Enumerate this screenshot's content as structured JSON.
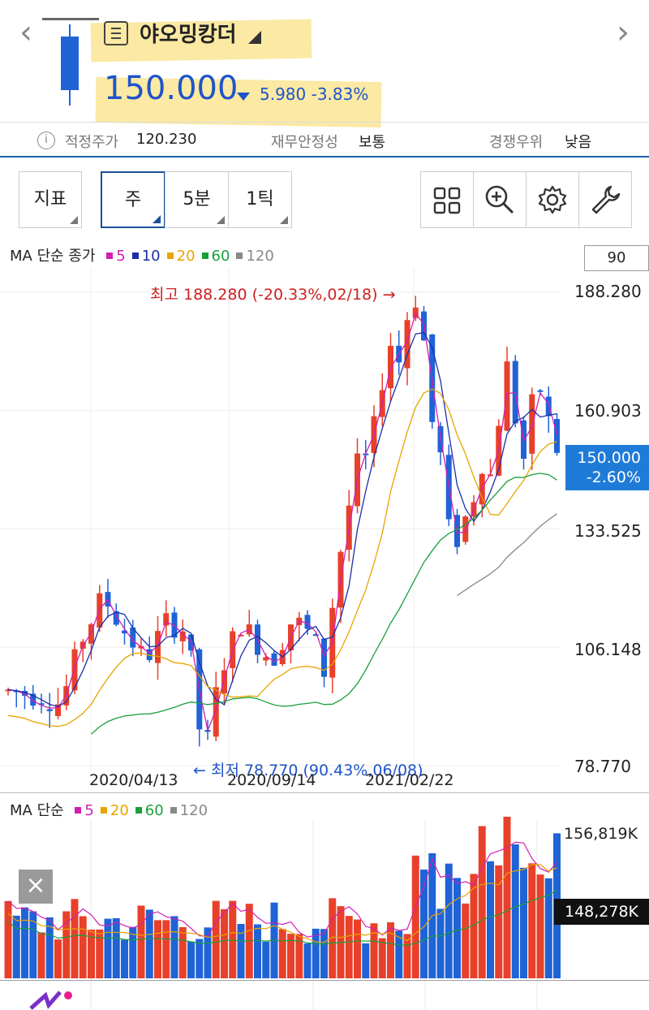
{
  "header": {
    "stock_name": "야오밍캉더",
    "price": "150.000",
    "change": "5.980 -3.83%",
    "prev_icon": "chevron-left-icon",
    "next_icon": "chevron-right-icon"
  },
  "info": {
    "fair_price_label": "적정주가",
    "fair_price_value": "120.230",
    "financial_label": "재무안정성",
    "financial_value": "보통",
    "competitive_label": "경쟁우위",
    "competitive_value": "낮음"
  },
  "toolbar": {
    "indicator": "지표",
    "week": "주",
    "min5": "5분",
    "tick1": "1틱",
    "icons": [
      "grid-icon",
      "zoom-in-icon",
      "settings-icon",
      "wrench-icon"
    ]
  },
  "price_legend": {
    "title": "MA 단순 종가",
    "items": [
      {
        "label": "5",
        "color": "#d21fb4"
      },
      {
        "label": "10",
        "color": "#1a2fa8"
      },
      {
        "label": "20",
        "color": "#e8a400"
      },
      {
        "label": "60",
        "color": "#19a03a"
      },
      {
        "label": "120",
        "color": "#888888"
      }
    ]
  },
  "period_value": "90",
  "price_axis": [
    "188.280",
    "160.903",
    "133.525",
    "106.148",
    "78.770"
  ],
  "current_tag": {
    "price": "150.000",
    "change": "-2.60%"
  },
  "annotations": {
    "high": "최고 188.280 (-20.33%,02/18) →",
    "low": "← 최저 78.770 (90.43%,06/08)"
  },
  "date_labels": [
    "2020/04/13",
    "2020/09/14",
    "2021/02/22"
  ],
  "volume_legend": {
    "title": "MA 단순",
    "items": [
      {
        "label": "5",
        "color": "#d21fb4"
      },
      {
        "label": "20",
        "color": "#e8a400"
      },
      {
        "label": "60",
        "color": "#19a03a"
      },
      {
        "label": "120",
        "color": "#888888"
      }
    ]
  },
  "volume_axis": {
    "top": "156,819K",
    "current": "148,278K"
  },
  "close_label": "×",
  "colors": {
    "up": "#e8402a",
    "down": "#1f63d6",
    "accent": "#1b63a8"
  }
}
